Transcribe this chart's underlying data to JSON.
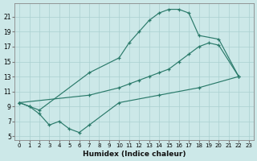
{
  "xlabel": "Humidex (Indice chaleur)",
  "background_color": "#cce8e8",
  "grid_color": "#aad0d0",
  "line_color": "#2a7a6a",
  "xlim": [
    -0.5,
    23.5
  ],
  "ylim": [
    4.5,
    22.8
  ],
  "yticks": [
    5,
    7,
    9,
    11,
    13,
    15,
    17,
    19,
    21
  ],
  "xticks": [
    0,
    1,
    2,
    3,
    4,
    5,
    6,
    7,
    8,
    9,
    10,
    11,
    12,
    13,
    14,
    15,
    16,
    17,
    18,
    19,
    20,
    21,
    22,
    23
  ],
  "curve_top_x": [
    0,
    1,
    2,
    7,
    10,
    11,
    12,
    13,
    14,
    15,
    16,
    17,
    18,
    20,
    22
  ],
  "curve_top_y": [
    9.5,
    9.0,
    8.5,
    13.5,
    15.5,
    17.5,
    19.0,
    20.5,
    21.5,
    22.0,
    22.0,
    21.5,
    18.5,
    18.0,
    13.0
  ],
  "curve_mid_x": [
    0,
    7,
    10,
    11,
    12,
    13,
    14,
    15,
    16,
    17,
    18,
    19,
    20,
    22
  ],
  "curve_mid_y": [
    9.5,
    10.5,
    11.5,
    12.0,
    12.5,
    13.0,
    13.5,
    14.0,
    15.0,
    16.0,
    17.0,
    17.5,
    17.2,
    13.0
  ],
  "curve_bot_x": [
    0,
    1,
    2,
    3,
    4,
    5,
    6,
    7,
    10,
    14,
    18,
    22
  ],
  "curve_bot_y": [
    9.5,
    9.0,
    8.0,
    6.5,
    7.0,
    6.0,
    5.5,
    6.5,
    9.5,
    10.5,
    11.5,
    13.0
  ]
}
